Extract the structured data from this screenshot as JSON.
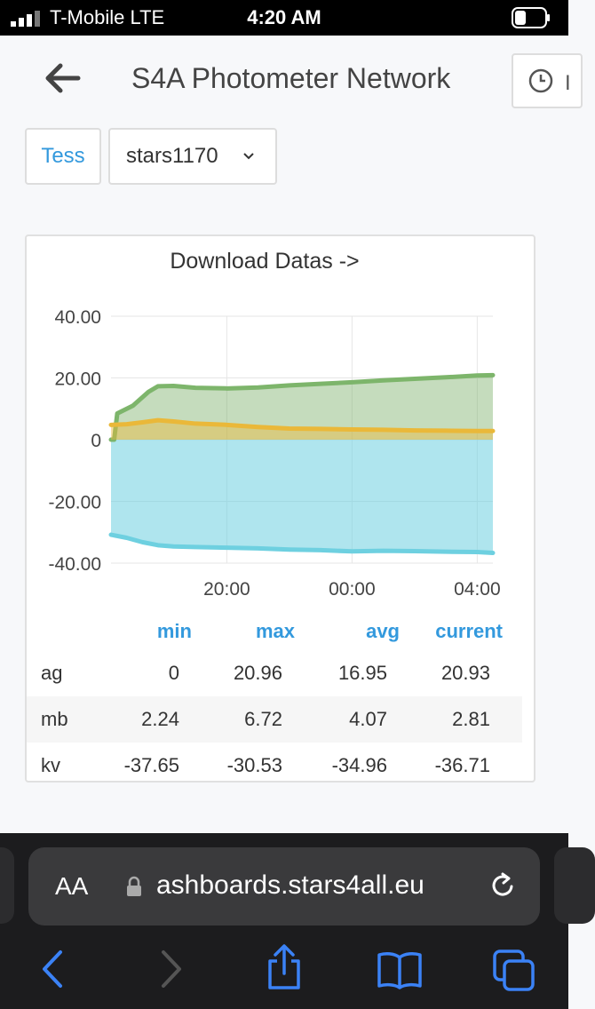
{
  "status_bar": {
    "carrier": "T-Mobile  LTE",
    "time": "4:20 AM"
  },
  "header": {
    "title": "S4A Photometer Network"
  },
  "variables": {
    "label": "Tess",
    "selected": "stars1170"
  },
  "panel": {
    "title": "Download Datas ->"
  },
  "chart_data": {
    "type": "line",
    "title": "Download Datas ->",
    "xlabel": "",
    "ylabel": "",
    "ylim": [
      -40,
      40
    ],
    "yticks": [
      "40.00",
      "20.00",
      "0",
      "-20.00",
      "-40.00"
    ],
    "xticks": [
      "20:00",
      "00:00",
      "04:00"
    ],
    "grid": true,
    "series": [
      {
        "name": "ag",
        "color": "#7db56b",
        "fill": "rgba(126,178,109,0.45)",
        "x": [
          16.3,
          16.4,
          16.5,
          17.0,
          17.5,
          17.8,
          18.3,
          19.0,
          20.0,
          21.0,
          22.0,
          23.0,
          0.0,
          1.0,
          2.0,
          3.0,
          4.0,
          4.5
        ],
        "y": [
          0,
          0,
          8.5,
          11,
          15.5,
          17.3,
          17.4,
          16.8,
          16.6,
          16.9,
          17.6,
          18.1,
          18.6,
          19.2,
          19.7,
          20.2,
          20.8,
          20.9
        ]
      },
      {
        "name": "mb",
        "color": "#eab839",
        "fill": "rgba(234,184,57,0.45)",
        "x": [
          16.3,
          16.8,
          17.3,
          17.8,
          18.3,
          19.0,
          20.0,
          21.0,
          22.0,
          23.0,
          0.0,
          1.0,
          2.0,
          3.0,
          4.0,
          4.5
        ],
        "y": [
          4.8,
          5.0,
          5.6,
          6.3,
          5.9,
          5.2,
          4.8,
          4.1,
          3.6,
          3.5,
          3.3,
          3.2,
          3.0,
          2.9,
          2.8,
          2.8
        ]
      },
      {
        "name": "kv",
        "color": "#6ed0e0",
        "fill": "rgba(110,208,224,0.55)",
        "x": [
          16.3,
          16.8,
          17.3,
          17.8,
          18.3,
          19.0,
          20.0,
          21.0,
          22.0,
          23.0,
          0.0,
          1.0,
          2.0,
          3.0,
          4.0,
          4.5
        ],
        "y": [
          -30.8,
          -31.8,
          -33.2,
          -34.2,
          -34.6,
          -34.8,
          -35.0,
          -35.2,
          -35.6,
          -35.8,
          -36.2,
          -36.0,
          -36.1,
          -36.3,
          -36.4,
          -36.7
        ]
      }
    ]
  },
  "legend": {
    "headers": [
      "min",
      "max",
      "avg",
      "current"
    ],
    "rows": [
      {
        "name": "ag",
        "min": "0",
        "max": "20.96",
        "avg": "16.95",
        "current": "20.93"
      },
      {
        "name": "mb",
        "min": "2.24",
        "max": "6.72",
        "avg": "4.07",
        "current": "2.81"
      },
      {
        "name": "kv",
        "min": "-37.65",
        "max": "-30.53",
        "avg": "-34.96",
        "current": "-36.71"
      }
    ]
  },
  "browser": {
    "aa_label": "AA",
    "url": "ashboards.stars4all.eu"
  },
  "icons": {
    "back": "arrow-left-icon",
    "time": "clock-icon",
    "dropdown": "chevron-down-icon",
    "lock": "lock-icon",
    "reload": "reload-icon",
    "nav_back": "chevron-left-icon",
    "nav_forward": "chevron-right-icon",
    "share": "share-icon",
    "bookmarks": "book-icon",
    "tabs": "tabs-icon"
  }
}
